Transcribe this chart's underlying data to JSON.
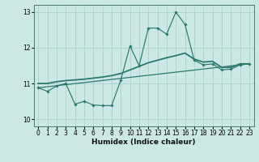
{
  "xlabel": "Humidex (Indice chaleur)",
  "xlim": [
    -0.5,
    23.5
  ],
  "ylim": [
    9.8,
    13.2
  ],
  "yticks": [
    10,
    11,
    12,
    13
  ],
  "xticks": [
    0,
    1,
    2,
    3,
    4,
    5,
    6,
    7,
    8,
    9,
    10,
    11,
    12,
    13,
    14,
    15,
    16,
    17,
    18,
    19,
    20,
    21,
    22,
    23
  ],
  "bg_color": "#cce8e4",
  "grid_color": "#aad0cc",
  "line_color": "#2a7a6a",
  "line1_x": [
    0,
    1,
    2,
    3,
    4,
    5,
    6,
    7,
    8,
    9,
    10,
    11,
    12,
    13,
    14,
    15,
    16,
    17,
    18,
    19,
    20,
    21,
    22,
    23
  ],
  "line1_y": [
    10.88,
    10.78,
    10.93,
    11.0,
    10.42,
    10.5,
    10.4,
    10.38,
    10.38,
    11.1,
    12.05,
    11.5,
    12.55,
    12.55,
    12.38,
    13.0,
    12.65,
    11.65,
    11.52,
    11.55,
    11.38,
    11.4,
    11.52,
    11.55
  ],
  "line2_x": [
    0,
    1,
    2,
    3,
    4,
    5,
    6,
    7,
    8,
    9,
    10,
    11,
    12,
    13,
    14,
    15,
    16,
    17,
    18,
    19,
    20,
    21,
    22,
    23
  ],
  "line2_y": [
    11.0,
    11.0,
    11.05,
    11.08,
    11.1,
    11.12,
    11.15,
    11.18,
    11.22,
    11.28,
    11.38,
    11.48,
    11.58,
    11.65,
    11.72,
    11.78,
    11.85,
    11.68,
    11.6,
    11.62,
    11.45,
    11.45,
    11.55,
    11.55
  ],
  "line3_x": [
    0,
    23
  ],
  "line3_y": [
    10.88,
    11.55
  ]
}
